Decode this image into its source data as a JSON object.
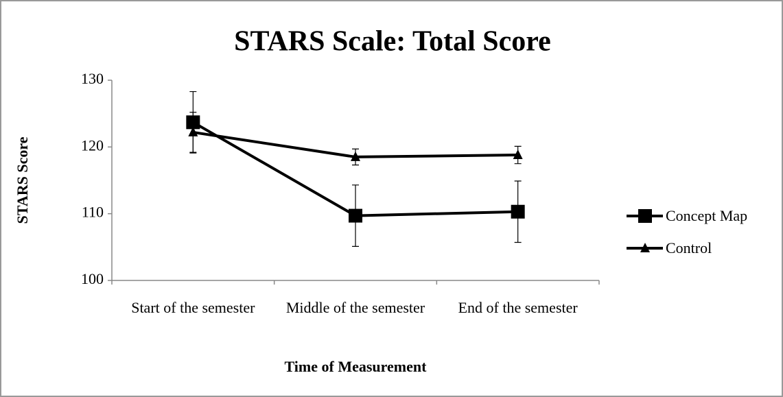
{
  "chart_data": {
    "type": "line",
    "title": "STARS Scale: Total Score",
    "xlabel": "Time of Measurement",
    "ylabel": "STARS Score",
    "categories": [
      "Start of the semester",
      "Middle of the semester",
      "End of the semester"
    ],
    "series": [
      {
        "name": "Concept Map",
        "color": "#000000",
        "marker": "square",
        "values": [
          123.7,
          109.7,
          110.3
        ],
        "errors": [
          4.6,
          4.6,
          4.6
        ]
      },
      {
        "name": "Control",
        "color": "#000000",
        "marker": "triangle",
        "values": [
          122.2,
          118.5,
          118.8
        ],
        "errors": [
          3.0,
          1.2,
          1.3
        ]
      }
    ],
    "ylim": [
      100,
      130
    ],
    "yticks": [
      100,
      110,
      120,
      130
    ],
    "grid": false,
    "legend": "right"
  }
}
